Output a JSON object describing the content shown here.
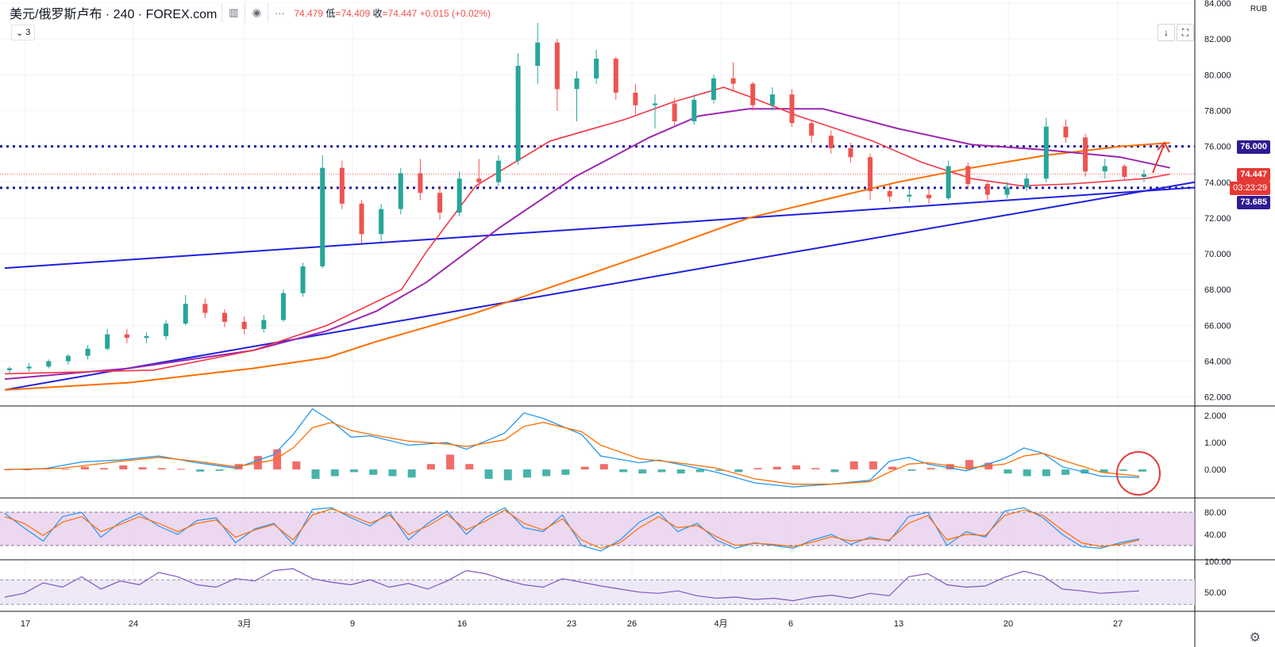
{
  "header": {
    "symbol": "美元/俄罗斯卢布 · 240 · FOREX.com",
    "ohlc_high": "74.479",
    "low_label": "低",
    "low_value": "=74.409",
    "close_label": "收",
    "close_value": "=74.447",
    "change": "+0.015 (+0.02%)",
    "collapse_count": "3"
  },
  "icons": {
    "bar_style": "bar-style-icon",
    "eye": "eye-icon",
    "more": "more-icon",
    "chevron": "chevron-down-icon",
    "download": "arrow-down-icon",
    "fullscreen": "fullscreen-icon",
    "settings": "gear-icon"
  },
  "currency": "RUB",
  "price_labels": {
    "r76": "76.000",
    "last": "74.447",
    "countdown": "03:23:29",
    "s73": "73.685"
  },
  "colors": {
    "up": "#26a69a",
    "down": "#ef5350",
    "ma_fast": "#f23645",
    "ma_mid": "#9c27b0",
    "ma_slow": "#ff6d00",
    "trend": "#1f1fdd",
    "level": "#1c1c9e",
    "label_navy": "#311b92",
    "label_red": "#e53935",
    "macd_line": "#2196f3",
    "signal_line": "#ff6d00",
    "rsi": "#7e57c2"
  },
  "chart_data": {
    "type": "candlestick",
    "title": "美元/俄罗斯卢布 · 240 · FOREX.com",
    "x_tick_labels": [
      "17",
      "24",
      "3月",
      "9",
      "16",
      "23",
      "26",
      "4月",
      "6",
      "13",
      "20",
      "27"
    ],
    "price_axis": {
      "ylim": [
        61.5,
        84
      ],
      "tick_labels": [
        "62.000",
        "64.000",
        "66.000",
        "68.000",
        "70.000",
        "72.000",
        "74.000",
        "76.000",
        "78.000",
        "80.000",
        "82.000",
        "84.000"
      ],
      "ticks": [
        62,
        64,
        66,
        68,
        70,
        72,
        74,
        76,
        78,
        80,
        82,
        84
      ]
    },
    "horizontal_levels": [
      76.0,
      73.685
    ],
    "last_price": 74.447,
    "ma_fast": [
      [
        0,
        63.3
      ],
      [
        6,
        63.5
      ],
      [
        10,
        64.6
      ],
      [
        13,
        66.0
      ],
      [
        16,
        68.0
      ],
      [
        17,
        70.1
      ],
      [
        19,
        73.8
      ],
      [
        22,
        76.3
      ],
      [
        25,
        77.5
      ],
      [
        27,
        78.5
      ],
      [
        29,
        79.3
      ],
      [
        30,
        78.8
      ],
      [
        32,
        77.7
      ],
      [
        35,
        76.3
      ],
      [
        37,
        75.1
      ],
      [
        39,
        74.2
      ],
      [
        41,
        73.8
      ],
      [
        43,
        73.9
      ],
      [
        45,
        74.1
      ],
      [
        46,
        74.2
      ],
      [
        47,
        74.45
      ]
    ],
    "ma_mid": [
      [
        0,
        63.0
      ],
      [
        5,
        63.6
      ],
      [
        10,
        64.6
      ],
      [
        13,
        65.7
      ],
      [
        15,
        66.8
      ],
      [
        17,
        68.4
      ],
      [
        20,
        71.5
      ],
      [
        23,
        74.3
      ],
      [
        26,
        76.5
      ],
      [
        28,
        77.7
      ],
      [
        30,
        78.1
      ],
      [
        33,
        78.1
      ],
      [
        36,
        77.0
      ],
      [
        39,
        76.1
      ],
      [
        42,
        75.8
      ],
      [
        45,
        75.4
      ],
      [
        47,
        74.8
      ]
    ],
    "ma_slow": [
      [
        0,
        62.4
      ],
      [
        5,
        62.8
      ],
      [
        10,
        63.6
      ],
      [
        13,
        64.2
      ],
      [
        15,
        65.1
      ],
      [
        19,
        66.7
      ],
      [
        23,
        68.6
      ],
      [
        27,
        70.5
      ],
      [
        30,
        72.0
      ],
      [
        33,
        73.0
      ],
      [
        36,
        74.0
      ],
      [
        39,
        74.8
      ],
      [
        42,
        75.5
      ],
      [
        45,
        76.0
      ],
      [
        47,
        76.2
      ]
    ],
    "trend_lines": [
      {
        "from": [
          0,
          69.2
        ],
        "to": [
          48,
          73.7
        ]
      },
      {
        "from": [
          0,
          62.4
        ],
        "to": [
          48,
          74.0
        ]
      }
    ],
    "candles": [
      {
        "o": 63.5,
        "h": 63.7,
        "l": 63.3,
        "c": 63.6
      },
      {
        "o": 63.6,
        "h": 63.9,
        "l": 63.4,
        "c": 63.7
      },
      {
        "o": 63.7,
        "h": 64.1,
        "l": 63.6,
        "c": 64.0
      },
      {
        "o": 64.0,
        "h": 64.4,
        "l": 63.8,
        "c": 64.3
      },
      {
        "o": 64.3,
        "h": 64.9,
        "l": 64.1,
        "c": 64.7
      },
      {
        "o": 64.7,
        "h": 65.8,
        "l": 64.6,
        "c": 65.5
      },
      {
        "o": 65.5,
        "h": 65.8,
        "l": 65.0,
        "c": 65.3
      },
      {
        "o": 65.3,
        "h": 65.6,
        "l": 65.0,
        "c": 65.4
      },
      {
        "o": 65.4,
        "h": 66.3,
        "l": 65.2,
        "c": 66.1
      },
      {
        "o": 66.1,
        "h": 67.7,
        "l": 66.0,
        "c": 67.2
      },
      {
        "o": 67.2,
        "h": 67.5,
        "l": 66.4,
        "c": 66.7
      },
      {
        "o": 66.7,
        "h": 66.9,
        "l": 65.9,
        "c": 66.2
      },
      {
        "o": 66.2,
        "h": 66.5,
        "l": 65.5,
        "c": 65.8
      },
      {
        "o": 65.8,
        "h": 66.6,
        "l": 65.6,
        "c": 66.3
      },
      {
        "o": 66.3,
        "h": 68.0,
        "l": 66.2,
        "c": 67.8
      },
      {
        "o": 67.8,
        "h": 69.5,
        "l": 67.6,
        "c": 69.3
      },
      {
        "o": 69.3,
        "h": 75.5,
        "l": 69.2,
        "c": 74.8
      },
      {
        "o": 74.8,
        "h": 75.2,
        "l": 72.5,
        "c": 72.8
      },
      {
        "o": 72.8,
        "h": 73.0,
        "l": 70.6,
        "c": 71.1
      },
      {
        "o": 71.1,
        "h": 72.8,
        "l": 70.7,
        "c": 72.5
      },
      {
        "o": 72.5,
        "h": 74.8,
        "l": 72.2,
        "c": 74.5
      },
      {
        "o": 74.5,
        "h": 75.3,
        "l": 73.0,
        "c": 73.4
      },
      {
        "o": 73.4,
        "h": 73.8,
        "l": 71.9,
        "c": 72.3
      },
      {
        "o": 72.3,
        "h": 74.6,
        "l": 72.1,
        "c": 74.2
      },
      {
        "o": 74.2,
        "h": 75.3,
        "l": 73.7,
        "c": 74.0
      },
      {
        "o": 74.0,
        "h": 75.5,
        "l": 73.8,
        "c": 75.2
      },
      {
        "o": 75.2,
        "h": 81.2,
        "l": 75.0,
        "c": 80.5
      },
      {
        "o": 80.5,
        "h": 82.9,
        "l": 79.5,
        "c": 81.8
      },
      {
        "o": 81.8,
        "h": 82.0,
        "l": 78.0,
        "c": 79.2
      },
      {
        "o": 79.2,
        "h": 80.2,
        "l": 77.4,
        "c": 79.8
      },
      {
        "o": 79.8,
        "h": 81.4,
        "l": 79.5,
        "c": 80.9
      },
      {
        "o": 80.9,
        "h": 81.0,
        "l": 78.6,
        "c": 79.0
      },
      {
        "o": 79.0,
        "h": 79.5,
        "l": 77.8,
        "c": 78.3
      },
      {
        "o": 78.3,
        "h": 78.9,
        "l": 77.0,
        "c": 78.4
      },
      {
        "o": 78.4,
        "h": 78.7,
        "l": 77.1,
        "c": 77.4
      },
      {
        "o": 77.4,
        "h": 78.9,
        "l": 77.2,
        "c": 78.6
      },
      {
        "o": 78.6,
        "h": 80.0,
        "l": 78.4,
        "c": 79.8
      },
      {
        "o": 79.8,
        "h": 80.7,
        "l": 79.1,
        "c": 79.5
      },
      {
        "o": 79.5,
        "h": 79.6,
        "l": 78.0,
        "c": 78.3
      },
      {
        "o": 78.3,
        "h": 79.3,
        "l": 78.0,
        "c": 78.9
      },
      {
        "o": 78.9,
        "h": 79.2,
        "l": 77.1,
        "c": 77.3
      },
      {
        "o": 77.3,
        "h": 77.5,
        "l": 76.2,
        "c": 76.6
      },
      {
        "o": 76.6,
        "h": 76.9,
        "l": 75.6,
        "c": 75.9
      },
      {
        "o": 75.9,
        "h": 76.2,
        "l": 75.1,
        "c": 75.4
      },
      {
        "o": 75.4,
        "h": 75.6,
        "l": 73.0,
        "c": 73.5
      },
      {
        "o": 73.5,
        "h": 73.9,
        "l": 72.9,
        "c": 73.2
      },
      {
        "o": 73.2,
        "h": 73.6,
        "l": 72.9,
        "c": 73.3
      },
      {
        "o": 73.3,
        "h": 73.6,
        "l": 72.8,
        "c": 73.1
      },
      {
        "o": 73.1,
        "h": 75.2,
        "l": 73.0,
        "c": 74.9
      },
      {
        "o": 74.9,
        "h": 75.1,
        "l": 73.6,
        "c": 73.9
      },
      {
        "o": 73.9,
        "h": 74.1,
        "l": 72.9,
        "c": 73.3
      },
      {
        "o": 73.3,
        "h": 74.0,
        "l": 73.1,
        "c": 73.7
      },
      {
        "o": 73.7,
        "h": 74.5,
        "l": 73.5,
        "c": 74.2
      },
      {
        "o": 74.2,
        "h": 77.6,
        "l": 74.0,
        "c": 77.1
      },
      {
        "o": 77.1,
        "h": 77.5,
        "l": 76.2,
        "c": 76.5
      },
      {
        "o": 76.5,
        "h": 76.7,
        "l": 74.3,
        "c": 74.6
      },
      {
        "o": 74.6,
        "h": 75.3,
        "l": 74.2,
        "c": 74.9
      },
      {
        "o": 74.9,
        "h": 75.0,
        "l": 74.1,
        "c": 74.3
      },
      {
        "o": 74.3,
        "h": 74.7,
        "l": 74.0,
        "c": 74.45
      }
    ],
    "panes": [
      {
        "name": "macd",
        "tick_labels": [
          "2.000",
          "1.000",
          "0.000"
        ],
        "ticks": [
          2,
          1,
          0
        ],
        "ylim": [
          -1.0,
          2.3
        ]
      },
      {
        "name": "stoch",
        "tick_labels": [
          "80.00",
          "40.00"
        ],
        "ticks": [
          80,
          40
        ],
        "bands": [
          80,
          20
        ],
        "ylim": [
          0,
          100
        ]
      },
      {
        "name": "rsi",
        "tick_labels": [
          "100.00",
          "50.00"
        ],
        "ticks": [
          100,
          50
        ],
        "bands": [
          70,
          30
        ],
        "ylim": [
          20,
          100
        ]
      }
    ],
    "macd_line": [
      [
        0,
        0
      ],
      [
        2,
        0.02
      ],
      [
        4,
        0.28
      ],
      [
        6,
        0.35
      ],
      [
        8,
        0.5
      ],
      [
        10,
        0.25
      ],
      [
        12,
        0.05
      ],
      [
        14,
        0.55
      ],
      [
        15,
        1.3
      ],
      [
        16,
        2.25
      ],
      [
        17,
        1.8
      ],
      [
        18,
        1.2
      ],
      [
        19,
        1.25
      ],
      [
        21,
        0.9
      ],
      [
        23,
        1.0
      ],
      [
        24,
        0.75
      ],
      [
        26,
        1.35
      ],
      [
        27,
        2.1
      ],
      [
        28,
        1.9
      ],
      [
        30,
        1.3
      ],
      [
        31,
        0.5
      ],
      [
        33,
        0.25
      ],
      [
        34,
        0.35
      ],
      [
        35,
        0.2
      ],
      [
        37,
        -0.1
      ],
      [
        39,
        -0.5
      ],
      [
        41,
        -0.65
      ],
      [
        43,
        -0.55
      ],
      [
        45,
        -0.4
      ],
      [
        46,
        0.3
      ],
      [
        47,
        0.45
      ],
      [
        48,
        0.2
      ],
      [
        50,
        -0.05
      ],
      [
        52,
        0.4
      ],
      [
        53,
        0.8
      ],
      [
        54,
        0.6
      ],
      [
        55,
        0.1
      ],
      [
        57,
        -0.25
      ],
      [
        59,
        -0.3
      ]
    ],
    "signal_line": [
      [
        0,
        0
      ],
      [
        3,
        0.05
      ],
      [
        6,
        0.3
      ],
      [
        8,
        0.45
      ],
      [
        10,
        0.3
      ],
      [
        12,
        0.1
      ],
      [
        14,
        0.35
      ],
      [
        15,
        0.8
      ],
      [
        16,
        1.55
      ],
      [
        17,
        1.75
      ],
      [
        18,
        1.45
      ],
      [
        19,
        1.3
      ],
      [
        21,
        1.05
      ],
      [
        23,
        0.95
      ],
      [
        24,
        0.85
      ],
      [
        26,
        1.1
      ],
      [
        27,
        1.6
      ],
      [
        28,
        1.75
      ],
      [
        30,
        1.4
      ],
      [
        31,
        0.9
      ],
      [
        33,
        0.4
      ],
      [
        35,
        0.25
      ],
      [
        37,
        0.05
      ],
      [
        39,
        -0.35
      ],
      [
        41,
        -0.55
      ],
      [
        43,
        -0.55
      ],
      [
        45,
        -0.45
      ],
      [
        46,
        -0.1
      ],
      [
        47,
        0.2
      ],
      [
        48,
        0.25
      ],
      [
        50,
        0.05
      ],
      [
        52,
        0.2
      ],
      [
        53,
        0.5
      ],
      [
        54,
        0.6
      ],
      [
        55,
        0.35
      ],
      [
        57,
        -0.1
      ],
      [
        59,
        -0.25
      ]
    ],
    "macd_hist": [
      0,
      0,
      0.05,
      0.02,
      0.1,
      0.05,
      0.15,
      0.08,
      0.05,
      0.02,
      -0.08,
      -0.05,
      0.2,
      0.5,
      0.75,
      0.3,
      -0.35,
      -0.25,
      -0.1,
      -0.2,
      -0.25,
      -0.3,
      0.2,
      0.55,
      0.2,
      -0.35,
      -0.4,
      -0.3,
      -0.25,
      -0.2,
      0.1,
      0.2,
      -0.1,
      -0.15,
      -0.1,
      -0.15,
      -0.1,
      -0.05,
      -0.1,
      0.05,
      0.1,
      0.15,
      0.05,
      -0.1,
      0.3,
      0.3,
      0.1,
      -0.05,
      0.05,
      0.2,
      0.35,
      0.25,
      -0.15,
      -0.25,
      -0.25,
      -0.2,
      -0.15,
      -0.1,
      -0.05,
      -0.08
    ],
    "stoch_k": [
      78,
      52,
      28,
      72,
      80,
      35,
      62,
      78,
      55,
      40,
      65,
      70,
      25,
      50,
      60,
      22,
      85,
      88,
      70,
      55,
      80,
      30,
      60,
      82,
      40,
      70,
      88,
      52,
      45,
      75,
      20,
      10,
      30,
      62,
      80,
      45,
      60,
      30,
      15,
      25,
      20,
      15,
      30,
      40,
      22,
      35,
      28,
      72,
      80,
      20,
      45,
      35,
      82,
      88,
      70,
      40,
      18,
      15,
      25,
      32
    ],
    "stoch_d": [
      72,
      60,
      38,
      62,
      72,
      45,
      58,
      72,
      60,
      45,
      60,
      66,
      35,
      48,
      58,
      30,
      75,
      86,
      74,
      60,
      75,
      40,
      55,
      76,
      48,
      64,
      84,
      60,
      48,
      68,
      30,
      15,
      25,
      52,
      72,
      52,
      56,
      36,
      20,
      24,
      22,
      18,
      26,
      36,
      28,
      32,
      30,
      60,
      74,
      30,
      40,
      38,
      74,
      84,
      74,
      48,
      25,
      18,
      22,
      30
    ],
    "rsi": [
      42,
      48,
      65,
      58,
      75,
      55,
      68,
      62,
      82,
      75,
      62,
      58,
      72,
      68,
      85,
      88,
      72,
      66,
      62,
      70,
      58,
      64,
      55,
      68,
      85,
      80,
      70,
      62,
      58,
      72,
      66,
      60,
      55,
      50,
      48,
      52,
      44,
      40,
      42,
      38,
      40,
      36,
      42,
      45,
      40,
      48,
      44,
      75,
      80,
      62,
      58,
      60,
      74,
      84,
      76,
      55,
      52,
      48,
      50,
      52
    ]
  },
  "annotations": {
    "target_arrow": "red-up-arrow",
    "macd_cross_circle": "red-circle"
  }
}
